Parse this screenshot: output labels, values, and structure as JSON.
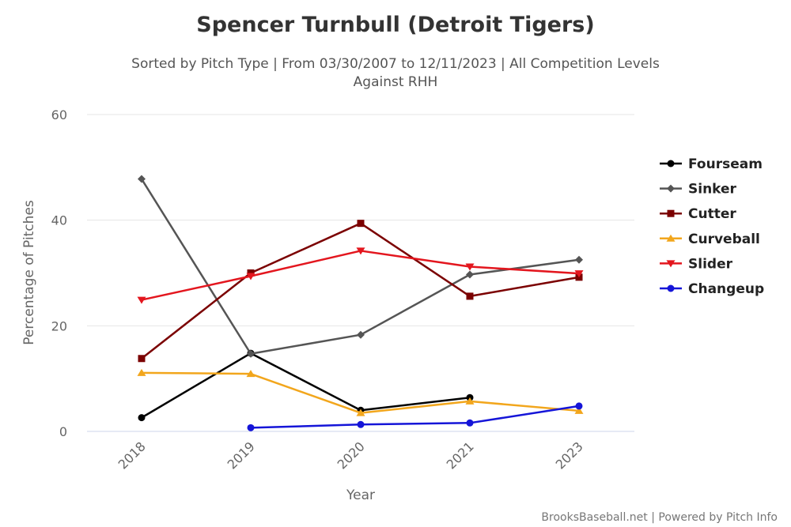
{
  "chart_data": {
    "type": "line",
    "title": "Spencer Turnbull (Detroit Tigers)",
    "subtitle_line1": "Sorted by Pitch Type | From 03/30/2007 to 12/11/2023 | All Competition Levels",
    "subtitle_line2": "Against RHH",
    "xlabel": "Year",
    "ylabel": "Percentage of Pitches",
    "categories": [
      "2018",
      "2019",
      "2020",
      "2021",
      "2023"
    ],
    "ylim": [
      0,
      60
    ],
    "yticks": [
      "0",
      "20",
      "40",
      "60"
    ],
    "legend_position": "right",
    "series": [
      {
        "name": "Fourseam",
        "color": "#000000",
        "marker": "circle",
        "values": [
          2.6,
          14.8,
          4.0,
          6.4,
          null
        ]
      },
      {
        "name": "Sinker",
        "color": "#555555",
        "marker": "diamond",
        "values": [
          47.8,
          14.7,
          18.3,
          29.7,
          32.5
        ]
      },
      {
        "name": "Cutter",
        "color": "#7b0000",
        "marker": "square",
        "values": [
          13.8,
          30.0,
          39.4,
          25.6,
          29.2
        ]
      },
      {
        "name": "Curveball",
        "color": "#f2a61c",
        "marker": "triangle",
        "values": [
          11.1,
          10.9,
          3.5,
          5.7,
          3.9
        ]
      },
      {
        "name": "Slider",
        "color": "#e3161e",
        "marker": "triangle-down",
        "values": [
          24.9,
          29.4,
          34.2,
          31.2,
          29.9
        ]
      },
      {
        "name": "Changeup",
        "color": "#1515d8",
        "marker": "circle",
        "values": [
          null,
          0.7,
          1.3,
          1.6,
          4.8
        ]
      }
    ]
  },
  "credit": "BrooksBaseball.net | Powered by Pitch Info"
}
